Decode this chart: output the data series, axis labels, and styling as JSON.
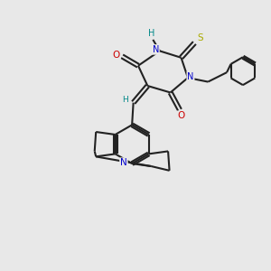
{
  "background_color": "#e8e8e8",
  "bond_color": "#222222",
  "N_color": "#0000cc",
  "O_color": "#cc0000",
  "S_color": "#aaaa00",
  "H_color": "#008888",
  "lw": 1.5,
  "figsize": [
    3.0,
    3.0
  ],
  "dpi": 100,
  "xlim": [
    0,
    10
  ],
  "ylim": [
    0,
    10
  ]
}
